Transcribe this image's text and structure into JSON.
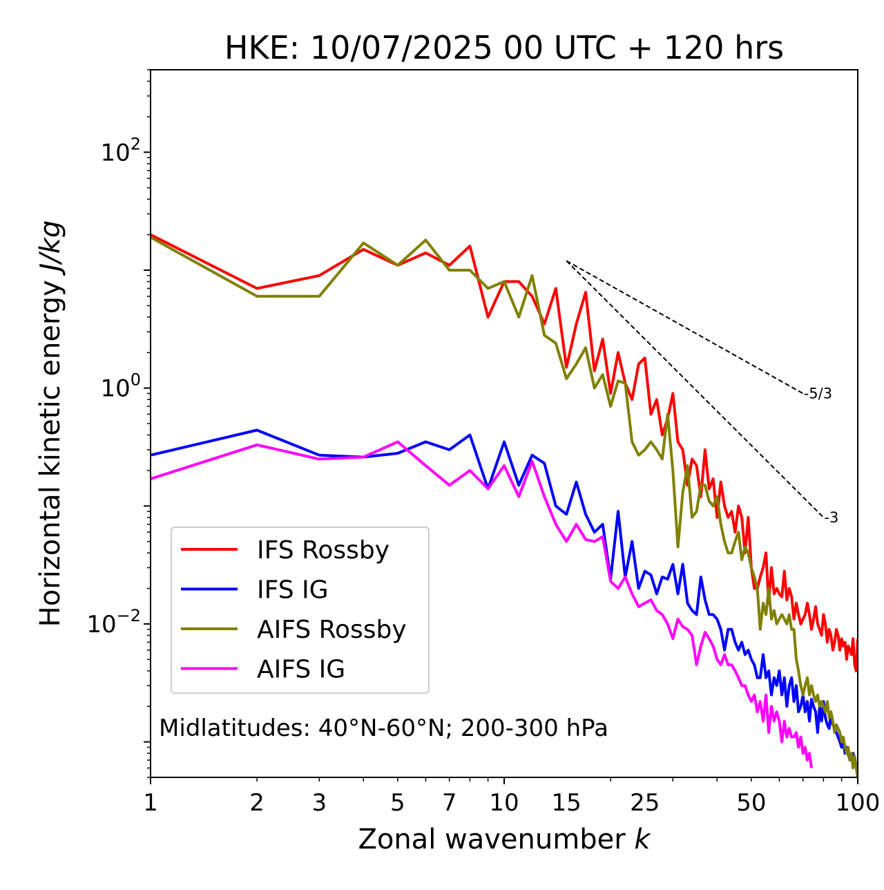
{
  "chart_data": {
    "type": "line",
    "title": "HKE: 10/07/2025 00 UTC + 120 hrs",
    "xlabel": "Zonal wavenumber",
    "xlabel_symbol": "k",
    "ylabel": "Horizontal kinetic energy",
    "ylabel_unit": "J/kg",
    "xscale": "log",
    "yscale": "log",
    "xlim": [
      1,
      100
    ],
    "ylim": [
      0.0005,
      500
    ],
    "x_ticks": [
      1,
      2,
      3,
      5,
      7,
      10,
      15,
      25,
      50,
      100
    ],
    "x_tick_labels": [
      "1",
      "2",
      "3",
      "5",
      "7",
      "10",
      "15",
      "25",
      "50",
      "100"
    ],
    "y_ticks": [
      0.01,
      1,
      100
    ],
    "y_tick_labels": [
      {
        "base": "10",
        "exp": "−2"
      },
      {
        "base": "10",
        "exp": "0"
      },
      {
        "base": "10",
        "exp": "2"
      }
    ],
    "grid": false,
    "legend_position": "lower-left",
    "annotation": "Midlatitudes: 40°N-60°N; 200-300 hPa",
    "reference_lines": [
      {
        "label": "-5/3",
        "x": [
          15,
          70
        ],
        "y": [
          12,
          0.9
        ]
      },
      {
        "label": "-3",
        "x": [
          15,
          80
        ],
        "y": [
          12,
          0.08
        ]
      }
    ],
    "series": [
      {
        "name": "IFS Rossby",
        "color": "#ff0000",
        "x": [
          1,
          2,
          3,
          4,
          5,
          6,
          7,
          8,
          9,
          10,
          11,
          12,
          13,
          14,
          15,
          16,
          17,
          18,
          19,
          20,
          21,
          22,
          23,
          24,
          25,
          26,
          27,
          28,
          29,
          30,
          31,
          32,
          33,
          34,
          35,
          36,
          37,
          38,
          39,
          40,
          41,
          42,
          43,
          44,
          45,
          46,
          47,
          48,
          49,
          50,
          51,
          52,
          53,
          54,
          55,
          56,
          57,
          58,
          59,
          60,
          61,
          62,
          63,
          64,
          65,
          66,
          67,
          68,
          69,
          70,
          71,
          72,
          73,
          74,
          75,
          76,
          77,
          78,
          79,
          80,
          81,
          82,
          83,
          84,
          85,
          86,
          87,
          88,
          89,
          90,
          91,
          92,
          93,
          94,
          95,
          96,
          97,
          98,
          99,
          100
        ],
        "y": [
          20,
          7,
          9,
          15,
          11,
          14,
          11,
          16,
          4,
          8,
          8,
          6,
          3.5,
          7,
          1.5,
          3.5,
          6.5,
          1.4,
          2.6,
          0.9,
          2,
          1.1,
          0.8,
          1.6,
          1.8,
          0.6,
          0.8,
          0.4,
          0.55,
          0.9,
          0.35,
          0.3,
          0.15,
          0.25,
          0.22,
          0.12,
          0.3,
          0.14,
          0.17,
          0.08,
          0.16,
          0.1,
          0.08,
          0.09,
          0.06,
          0.1,
          0.08,
          0.04,
          0.08,
          0.03,
          0.02,
          0.02,
          0.025,
          0.03,
          0.04,
          0.015,
          0.03,
          0.018,
          0.02,
          0.018,
          0.017,
          0.028,
          0.016,
          0.02,
          0.017,
          0.011,
          0.015,
          0.012,
          0.01,
          0.011,
          0.012,
          0.015,
          0.012,
          0.009,
          0.011,
          0.014,
          0.01,
          0.009,
          0.008,
          0.012,
          0.01,
          0.007,
          0.009,
          0.008,
          0.006,
          0.007,
          0.009,
          0.008,
          0.006,
          0.0075,
          0.0065,
          0.007,
          0.005,
          0.0065,
          0.006,
          0.0055,
          0.0075,
          0.0045,
          0.004,
          0.0075
        ]
      },
      {
        "name": "IFS IG",
        "color": "#0000ff",
        "x": [
          1,
          2,
          3,
          4,
          5,
          6,
          7,
          8,
          9,
          10,
          11,
          12,
          13,
          14,
          15,
          16,
          17,
          18,
          19,
          20,
          21,
          22,
          23,
          24,
          25,
          26,
          27,
          28,
          29,
          30,
          31,
          32,
          33,
          34,
          35,
          36,
          37,
          38,
          39,
          40,
          41,
          42,
          43,
          44,
          45,
          46,
          47,
          48,
          49,
          50,
          51,
          52,
          53,
          54,
          55,
          56,
          57,
          58,
          59,
          60,
          61,
          62,
          63,
          64,
          65,
          66,
          67,
          68,
          69,
          70,
          71,
          72,
          73,
          74,
          75,
          76,
          77,
          78,
          79,
          80,
          81,
          82,
          83,
          84,
          85,
          86,
          87,
          88,
          89,
          90,
          91,
          92,
          93,
          94,
          95,
          96,
          97,
          98,
          99,
          100
        ],
        "y": [
          0.27,
          0.44,
          0.27,
          0.26,
          0.28,
          0.35,
          0.3,
          0.4,
          0.14,
          0.35,
          0.15,
          0.27,
          0.23,
          0.1,
          0.085,
          0.16,
          0.085,
          0.06,
          0.07,
          0.024,
          0.09,
          0.025,
          0.05,
          0.02,
          0.028,
          0.026,
          0.018,
          0.025,
          0.024,
          0.032,
          0.018,
          0.032,
          0.015,
          0.013,
          0.012,
          0.025,
          0.016,
          0.012,
          0.012,
          0.011,
          0.009,
          0.006,
          0.009,
          0.009,
          0.007,
          0.006,
          0.007,
          0.0055,
          0.006,
          0.005,
          0.0045,
          0.0035,
          0.0035,
          0.0055,
          0.0035,
          0.004,
          0.0025,
          0.0035,
          0.003,
          0.004,
          0.0025,
          0.0035,
          0.002,
          0.003,
          0.0035,
          0.0022,
          0.003,
          0.0018,
          0.002,
          0.0025,
          0.0018,
          0.0022,
          0.0015,
          0.0023,
          0.002,
          0.0018,
          0.0012,
          0.002,
          0.0015,
          0.0022,
          0.0016,
          0.0014,
          0.0013,
          0.0017,
          0.0014,
          0.0013,
          0.0012,
          0.0011,
          0.001,
          0.0009,
          0.001,
          0.0008,
          0.0009,
          0.0008,
          0.0007,
          0.00075,
          0.0008,
          0.0007,
          0.00065,
          0.0006
        ]
      },
      {
        "name": "AIFS Rossby",
        "color": "#808000",
        "x": [
          1,
          2,
          3,
          4,
          5,
          6,
          7,
          8,
          9,
          10,
          11,
          12,
          13,
          14,
          15,
          16,
          17,
          18,
          19,
          20,
          21,
          22,
          23,
          24,
          25,
          26,
          27,
          28,
          29,
          30,
          31,
          32,
          33,
          34,
          35,
          36,
          37,
          38,
          39,
          40,
          41,
          42,
          43,
          44,
          45,
          46,
          47,
          48,
          49,
          50,
          51,
          52,
          53,
          54,
          55,
          56,
          57,
          58,
          59,
          60,
          61,
          62,
          63,
          64,
          65,
          66,
          67,
          68,
          69,
          70,
          71,
          72,
          73,
          74,
          75,
          76,
          77,
          78,
          79,
          80,
          81,
          82,
          83,
          84,
          85,
          86,
          87,
          88,
          89,
          90,
          91,
          92,
          93,
          94,
          95,
          96,
          97,
          98,
          99,
          100
        ],
        "y": [
          19,
          6,
          6,
          17,
          11,
          18,
          10,
          10,
          7,
          8,
          4,
          9,
          2.8,
          2.4,
          1.2,
          1.6,
          2.2,
          1,
          1.3,
          0.7,
          1.15,
          1.1,
          0.35,
          0.27,
          0.3,
          0.35,
          0.3,
          0.25,
          0.6,
          0.2,
          0.045,
          0.13,
          0.22,
          0.08,
          0.09,
          0.15,
          0.15,
          0.11,
          0.1,
          0.12,
          0.07,
          0.05,
          0.04,
          0.04,
          0.05,
          0.06,
          0.035,
          0.045,
          0.04,
          0.03,
          0.025,
          0.02,
          0.009,
          0.015,
          0.012,
          0.02,
          0.011,
          0.013,
          0.01,
          0.011,
          0.012,
          0.011,
          0.01,
          0.012,
          0.009,
          0.009,
          0.005,
          0.004,
          0.003,
          0.0025,
          0.003,
          0.0035,
          0.0025,
          0.003,
          0.0025,
          0.0022,
          0.0025,
          0.002,
          0.0022,
          0.002,
          0.0018,
          0.0022,
          0.0016,
          0.0018,
          0.0015,
          0.0012,
          0.0014,
          0.0013,
          0.0012,
          0.001,
          0.0011,
          0.0009,
          0.0008,
          0.0009,
          0.0007,
          0.0008,
          0.0006,
          0.00075,
          0.0006,
          0.0005
        ]
      },
      {
        "name": "AIFS IG",
        "color": "#ff00ff",
        "x": [
          1,
          2,
          3,
          4,
          5,
          6,
          7,
          8,
          9,
          10,
          11,
          12,
          13,
          14,
          15,
          16,
          17,
          18,
          19,
          20,
          21,
          22,
          23,
          24,
          25,
          26,
          27,
          28,
          29,
          30,
          31,
          32,
          33,
          34,
          35,
          36,
          37,
          38,
          39,
          40,
          41,
          42,
          43,
          44,
          45,
          46,
          47,
          48,
          49,
          50,
          51,
          52,
          53,
          54,
          55,
          56,
          57,
          58,
          59,
          60,
          61,
          62,
          63,
          64,
          65,
          66,
          67,
          68,
          69,
          70,
          71,
          72,
          73,
          74
        ],
        "y": [
          0.17,
          0.33,
          0.25,
          0.26,
          0.35,
          0.22,
          0.15,
          0.2,
          0.14,
          0.22,
          0.12,
          0.24,
          0.12,
          0.07,
          0.05,
          0.07,
          0.052,
          0.05,
          0.055,
          0.023,
          0.02,
          0.025,
          0.018,
          0.014,
          0.015,
          0.016,
          0.013,
          0.012,
          0.01,
          0.0075,
          0.011,
          0.0095,
          0.009,
          0.008,
          0.0045,
          0.0065,
          0.0085,
          0.0075,
          0.0065,
          0.005,
          0.0045,
          0.0055,
          0.0045,
          0.0045,
          0.004,
          0.0035,
          0.003,
          0.003,
          0.0025,
          0.0022,
          0.0025,
          0.0018,
          0.0022,
          0.0015,
          0.0025,
          0.0012,
          0.002,
          0.0015,
          0.0018,
          0.0015,
          0.001,
          0.0015,
          0.0011,
          0.0013,
          0.0011,
          0.0011,
          0.0012,
          0.0009,
          0.0011,
          0.0008,
          0.0009,
          0.0007,
          0.0008,
          0.0006
        ]
      }
    ]
  }
}
